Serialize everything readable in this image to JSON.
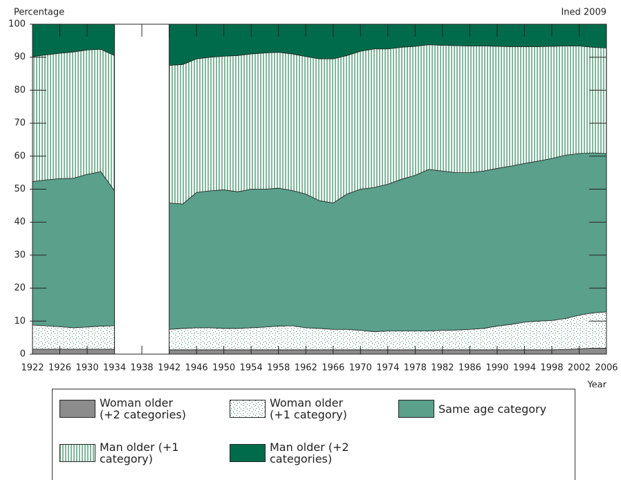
{
  "chart_data": {
    "type": "stacked-area",
    "y_label": "Percentage",
    "source": "Ined 2009",
    "x_label": "Year",
    "x": [
      1922,
      1924,
      1926,
      1928,
      1930,
      1932,
      1934,
      1938,
      1942,
      1944,
      1946,
      1948,
      1950,
      1952,
      1954,
      1956,
      1958,
      1960,
      1962,
      1964,
      1966,
      1968,
      1970,
      1972,
      1974,
      1976,
      1978,
      1980,
      1982,
      1984,
      1986,
      1988,
      1990,
      1992,
      1994,
      1996,
      1998,
      2000,
      2002,
      2004,
      2006
    ],
    "series": [
      {
        "name": "Woman older (+2 categories)",
        "color": "#8c8c8c",
        "pattern": "solid",
        "values": [
          1.5,
          1.5,
          1.5,
          1.5,
          1.5,
          1.5,
          1.5,
          null,
          1.3,
          1.3,
          1.3,
          1.3,
          1.3,
          1.3,
          1.3,
          1.3,
          1.3,
          1.3,
          1.3,
          1.3,
          1.3,
          1.3,
          1.3,
          1.3,
          1.3,
          1.3,
          1.3,
          1.3,
          1.3,
          1.3,
          1.3,
          1.3,
          1.3,
          1.3,
          1.3,
          1.3,
          1.3,
          1.4,
          1.6,
          1.8,
          1.8
        ]
      },
      {
        "name": "Woman older (+1 category)",
        "color": "#2e7d5b",
        "pattern": "dots",
        "values": [
          7.3,
          7.1,
          6.8,
          6.5,
          6.7,
          7.0,
          7.1,
          null,
          6.2,
          6.5,
          6.7,
          6.7,
          6.5,
          6.5,
          6.7,
          6.9,
          7.2,
          7.3,
          6.7,
          6.5,
          6.2,
          6.2,
          5.9,
          5.5,
          5.7,
          5.7,
          5.7,
          5.7,
          5.9,
          6.0,
          6.2,
          6.5,
          7.2,
          7.7,
          8.4,
          8.7,
          8.9,
          9.4,
          10.2,
          10.7,
          11.0
        ]
      },
      {
        "name": "Same age category",
        "color": "#5aa08b",
        "pattern": "solid",
        "values": [
          43.5,
          44.2,
          44.9,
          45.3,
          46.3,
          46.8,
          40.9,
          null,
          38.3,
          37.7,
          41.0,
          41.5,
          42.0,
          41.4,
          42.0,
          41.8,
          41.8,
          41.0,
          40.5,
          38.7,
          38.3,
          41.0,
          42.8,
          43.7,
          44.5,
          46.0,
          47.2,
          49.0,
          48.3,
          47.7,
          47.5,
          47.7,
          47.8,
          48.0,
          48.1,
          48.5,
          49.1,
          49.5,
          49.0,
          48.5,
          48.0
        ]
      },
      {
        "name": "Man older (+1 category)",
        "color": "#7fb79a",
        "pattern": "stripes",
        "values": [
          37.9,
          37.9,
          38.0,
          38.3,
          37.7,
          37.1,
          41.0,
          null,
          41.7,
          42.3,
          40.5,
          40.5,
          40.5,
          41.3,
          41.0,
          41.3,
          41.2,
          41.4,
          41.7,
          43.0,
          43.7,
          42.0,
          41.8,
          42.0,
          41.0,
          40.0,
          39.1,
          37.8,
          38.1,
          38.5,
          38.4,
          37.9,
          37.0,
          36.2,
          35.4,
          34.7,
          34.0,
          33.1,
          32.6,
          32.0,
          32.0
        ]
      },
      {
        "name": "Man older (+2 categories)",
        "color": "#006b4a",
        "pattern": "solid",
        "values": [
          9.8,
          9.3,
          8.8,
          8.4,
          7.8,
          7.6,
          9.5,
          null,
          12.5,
          12.2,
          10.5,
          10.0,
          9.7,
          9.5,
          9.0,
          8.7,
          8.5,
          9.0,
          9.8,
          10.5,
          10.5,
          9.5,
          8.2,
          7.5,
          7.5,
          7.0,
          6.7,
          6.2,
          6.4,
          6.5,
          6.6,
          6.6,
          6.7,
          6.8,
          6.8,
          6.8,
          6.7,
          6.6,
          6.6,
          7.0,
          7.2
        ]
      }
    ],
    "xlim": [
      1922,
      2006
    ],
    "xticks": [
      1922,
      1926,
      1930,
      1934,
      1938,
      1942,
      1946,
      1950,
      1954,
      1958,
      1962,
      1966,
      1970,
      1974,
      1978,
      1982,
      1986,
      1990,
      1994,
      1998,
      2002,
      2006
    ],
    "ylim": [
      0,
      100
    ],
    "yticks": [
      0,
      10,
      20,
      30,
      40,
      50,
      60,
      70,
      80,
      90,
      100
    ],
    "legend": "bottom"
  }
}
